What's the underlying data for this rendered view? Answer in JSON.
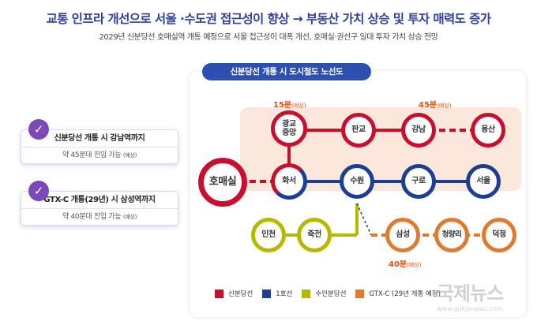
{
  "header": {
    "title": "교통 인프라 개선으로 서울 ·수도권 접근성이 향상 → 부동산 가치 상승 및 투자 매력도 증가",
    "subtitle": "2029년 신분당선 호매실역 개통 예정으로 서울 접근성이 대폭 개선, 호매실·권선구 일대 투자 가치 상승 전망"
  },
  "cards": [
    {
      "title": "신분당선 개통 시 강남역까지",
      "detail": "약 45분대 진입 가능",
      "note": "(예상)"
    },
    {
      "title": "GTX-C 개통(29년) 시 삼성역까지",
      "detail": "약 40분대 진입 가능",
      "note": "(예상)"
    }
  ],
  "map": {
    "title": "신분당선 개통 시 도시철도 노선도",
    "times": [
      {
        "value": "15분",
        "note": "(예상)"
      },
      {
        "value": "45분",
        "note": "(예상)"
      },
      {
        "value": "40분",
        "note": "(예상)"
      }
    ],
    "stations": {
      "homaesil": "호매실",
      "gwanggyo": "광교\n중앙",
      "hwaseo": "화서",
      "pangyo": "판교",
      "gangnam": "강남",
      "yongsan": "용산",
      "suwon": "수원",
      "guro": "구로",
      "seoul": "서울",
      "incheon": "인천",
      "jukjeon": "죽전",
      "samseong": "삼성",
      "cheongnyangni": "청량리",
      "deokjeong": "덕정"
    },
    "colors": {
      "shinbundang": "#c8102e",
      "line1": "#1c3f94",
      "suinbundang": "#b7b800",
      "gtxc": "#e07a2e"
    }
  },
  "legend": [
    {
      "label": "신분당선",
      "color": "#c8102e"
    },
    {
      "label": "1호선",
      "color": "#1c3f94"
    },
    {
      "label": "수인분당선",
      "color": "#b7b800"
    },
    {
      "label": "GTX-C (29년 개통 예정)",
      "color": "#e07a2e"
    }
  ],
  "watermark": {
    "name": "국제뉴스",
    "url": "www.gukjenews.com"
  }
}
